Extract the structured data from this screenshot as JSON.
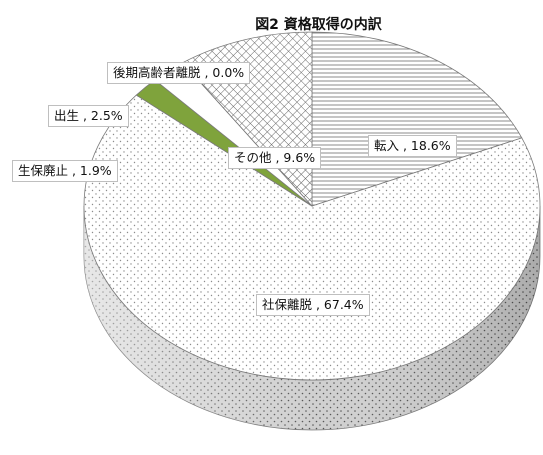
{
  "chart_data": {
    "type": "pie",
    "title": "図2 資格取得の内訳",
    "slices": [
      {
        "name": "転入",
        "value": 18.6,
        "label": "転入 , 18.6%",
        "pattern": "hstripe"
      },
      {
        "name": "社保離脱",
        "value": 67.4,
        "label": "社保離脱 , 67.4%",
        "pattern": "dots"
      },
      {
        "name": "生保廃止",
        "value": 1.9,
        "label": "生保廃止 , 1.9%",
        "pattern": "green"
      },
      {
        "name": "出生",
        "value": 2.5,
        "label": "出生 , 2.5%",
        "pattern": "white"
      },
      {
        "name": "後期高齢者離脱",
        "value": 0.0,
        "label": "後期高齢者離脱 , 0.0%",
        "pattern": "diag"
      },
      {
        "name": "その他",
        "value": 9.6,
        "label": "その他 , 9.6%",
        "pattern": "cross"
      }
    ],
    "colors": {
      "green": "#7fa33c",
      "outline": "#7a7a7a"
    }
  }
}
